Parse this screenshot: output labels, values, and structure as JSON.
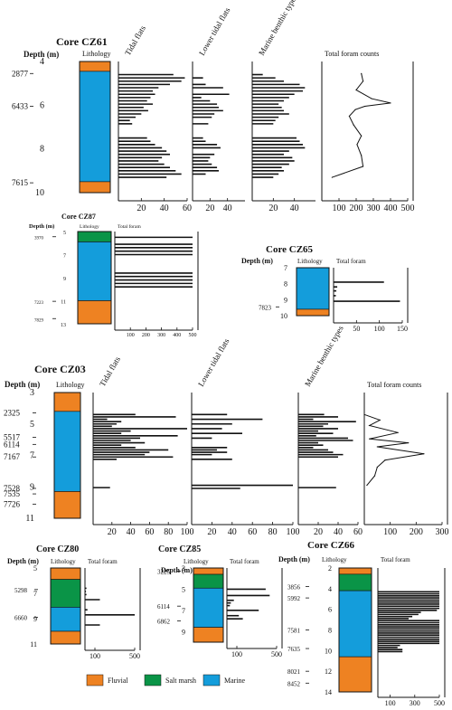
{
  "figure": {
    "legend": [
      {
        "label": "Fluvial",
        "color": "#ee8222"
      },
      {
        "label": "Salt marsh",
        "color": "#0a9447"
      },
      {
        "label": "Marine",
        "color": "#149ddb"
      }
    ]
  },
  "chart_data": [
    {
      "core": "Core CZ61",
      "type": "bar",
      "ylabel": "Depth (m)",
      "depth_range": [
        4,
        10
      ],
      "depth_ticks": [
        4,
        6,
        8,
        10
      ],
      "ages": [
        {
          "label": "2877",
          "depth": 4.55
        },
        {
          "label": "6433",
          "depth": 6.05
        },
        {
          "label": "7615",
          "depth": 9.55
        }
      ],
      "lithology_label": "Lithology",
      "lithology": [
        {
          "type": "Fluvial",
          "color": "#ee8222",
          "top": 4.0,
          "bottom": 4.45
        },
        {
          "type": "Marine",
          "color": "#149ddb",
          "top": 4.45,
          "bottom": 9.5
        },
        {
          "type": "Fluvial",
          "color": "#ee8222",
          "top": 9.5,
          "bottom": 10.0
        }
      ],
      "panels": [
        {
          "label": "Tidal flats",
          "xlim": [
            0,
            60
          ],
          "ticks": [
            20,
            40,
            60
          ],
          "depths": [
            4.6,
            4.75,
            4.9,
            5.05,
            5.2,
            5.35,
            5.5,
            5.65,
            5.8,
            5.95,
            6.1,
            6.25,
            6.4,
            6.55,
            6.7,
            6.85,
            7.5,
            7.65,
            7.8,
            7.95,
            8.1,
            8.25,
            8.4,
            8.55,
            8.7,
            8.85,
            9.0,
            9.15,
            9.3
          ],
          "values": [
            48,
            58,
            55,
            45,
            35,
            30,
            32,
            28,
            25,
            30,
            22,
            26,
            20,
            15,
            10,
            12,
            25,
            28,
            32,
            38,
            42,
            45,
            38,
            35,
            40,
            45,
            50,
            55,
            42
          ]
        },
        {
          "label": "Lower tidal flats",
          "xlim": [
            0,
            60
          ],
          "ticks": [
            20,
            40
          ],
          "depths": [
            4.75,
            5.05,
            5.2,
            5.5,
            5.65,
            5.8,
            5.95,
            6.1,
            6.25,
            6.4,
            6.55,
            6.85,
            7.5,
            7.65,
            7.8,
            7.95,
            8.25,
            8.4,
            8.55,
            8.7,
            8.85,
            9.0,
            9.15
          ],
          "values": [
            12,
            15,
            35,
            42,
            10,
            20,
            28,
            30,
            35,
            25,
            22,
            18,
            12,
            15,
            28,
            32,
            25,
            20,
            18,
            22,
            28,
            30,
            15
          ]
        },
        {
          "label": "Marine benthic types",
          "xlim": [
            0,
            60
          ],
          "ticks": [
            20,
            40
          ],
          "depths": [
            4.6,
            4.75,
            4.9,
            5.05,
            5.2,
            5.35,
            5.5,
            5.65,
            5.8,
            5.95,
            6.1,
            6.25,
            6.4,
            6.55,
            6.7,
            6.85,
            7.5,
            7.65,
            7.8,
            7.95,
            8.1,
            8.25,
            8.4,
            8.55,
            8.7,
            8.85,
            9.0,
            9.15,
            9.3
          ],
          "values": [
            10,
            22,
            30,
            45,
            50,
            48,
            40,
            35,
            30,
            25,
            28,
            30,
            35,
            25,
            22,
            20,
            42,
            45,
            48,
            50,
            35,
            30,
            38,
            40,
            35,
            28,
            30,
            25,
            20
          ]
        },
        {
          "label": "Total foram counts",
          "kind": "curve",
          "xlim": [
            0,
            500
          ],
          "ticks": [
            100,
            200,
            300,
            400,
            500
          ],
          "depths": [
            4.55,
            4.9,
            5.3,
            5.7,
            5.9,
            6.05,
            6.2,
            6.5,
            6.9,
            7.4,
            7.8,
            8.3,
            8.8,
            9.3
          ],
          "values": [
            230,
            240,
            200,
            290,
            400,
            250,
            195,
            160,
            185,
            230,
            205,
            230,
            240,
            60
          ]
        }
      ]
    },
    {
      "core": "Core CZ87",
      "type": "bar",
      "ylabel": "Depth (m)",
      "depth_range": [
        5,
        13
      ],
      "depth_ticks": [
        5,
        7,
        9,
        11,
        13
      ],
      "ages": [
        {
          "label": "3970",
          "depth": 5.45
        },
        {
          "label": "7223",
          "depth": 11.05
        },
        {
          "label": "7829",
          "depth": 12.55
        }
      ],
      "lithology_label": "Lithology",
      "lithology": [
        {
          "type": "Salt marsh",
          "color": "#0a9447",
          "top": 5.0,
          "bottom": 5.9
        },
        {
          "type": "Marine",
          "color": "#149ddb",
          "top": 5.9,
          "bottom": 11.0
        },
        {
          "type": "Fluvial",
          "color": "#ee8222",
          "top": 11.0,
          "bottom": 13.0
        }
      ],
      "panels": [
        {
          "label": "Total foram",
          "xlim": [
            0,
            500
          ],
          "ticks": [
            100,
            200,
            300,
            400,
            500
          ],
          "depths": [
            5.5,
            6.1,
            6.4,
            6.7,
            7.0,
            8.6,
            8.9,
            9.2,
            9.5,
            9.8
          ],
          "values": [
            500,
            500,
            500,
            500,
            500,
            500,
            500,
            500,
            500,
            500
          ]
        }
      ]
    },
    {
      "core": "Core CZ65",
      "type": "bar",
      "ylabel": "Depth (m)",
      "depth_range": [
        7,
        10
      ],
      "depth_ticks": [
        7,
        8,
        9,
        10
      ],
      "ages": [
        {
          "label": "7823",
          "depth": 9.45
        }
      ],
      "lithology_label": "Lithology",
      "lithology": [
        {
          "type": "Marine",
          "color": "#149ddb",
          "top": 7.0,
          "bottom": 9.6
        },
        {
          "type": "Fluvial",
          "color": "#ee8222",
          "top": 9.6,
          "bottom": 10.0
        }
      ],
      "panels": [
        {
          "label": "Total foram",
          "xlim": [
            0,
            150
          ],
          "ticks": [
            50,
            100,
            150
          ],
          "depths": [
            7.9,
            8.2,
            8.45,
            8.75,
            9.1
          ],
          "values": [
            110,
            8,
            6,
            5,
            145
          ]
        }
      ]
    },
    {
      "core": "Core CZ03",
      "type": "bar",
      "ylabel": "Depth (m)",
      "depth_range": [
        3,
        11
      ],
      "depth_ticks": [
        3,
        5,
        7,
        9,
        11
      ],
      "ages": [
        {
          "label": "2325",
          "depth": 4.3
        },
        {
          "label": "5517",
          "depth": 5.85
        },
        {
          "label": "6114",
          "depth": 6.3
        },
        {
          "label": "7167",
          "depth": 7.1
        },
        {
          "label": "7528",
          "depth": 9.1
        },
        {
          "label": "7535",
          "depth": 9.45
        },
        {
          "label": "7726",
          "depth": 10.1
        }
      ],
      "lithology_label": "Lithology",
      "lithology": [
        {
          "type": "Fluvial",
          "color": "#ee8222",
          "top": 3.0,
          "bottom": 4.2
        },
        {
          "type": "Marine",
          "color": "#149ddb",
          "top": 4.2,
          "bottom": 9.3
        },
        {
          "type": "Fluvial",
          "color": "#ee8222",
          "top": 9.3,
          "bottom": 11.0
        }
      ],
      "panels": [
        {
          "label": "Tidal flats",
          "xlim": [
            0,
            100
          ],
          "ticks": [
            20,
            40,
            60,
            80,
            100
          ],
          "depths": [
            4.4,
            4.55,
            4.7,
            4.85,
            5.0,
            5.15,
            5.3,
            5.45,
            5.6,
            5.75,
            5.9,
            6.05,
            6.2,
            6.35,
            6.5,
            6.65,
            6.8,
            6.95,
            7.1,
            7.25,
            9.05
          ],
          "values": [
            45,
            88,
            15,
            30,
            25,
            20,
            100,
            40,
            30,
            90,
            50,
            40,
            55,
            30,
            45,
            80,
            60,
            55,
            85,
            25,
            18
          ]
        },
        {
          "label": "Lower tidal flats",
          "xlim": [
            0,
            100
          ],
          "ticks": [
            20,
            40,
            60,
            80,
            100
          ],
          "depths": [
            4.4,
            4.7,
            5.0,
            5.3,
            5.6,
            5.9,
            6.5,
            6.65,
            6.8,
            6.95,
            7.25,
            8.9,
            9.1
          ],
          "values": [
            35,
            70,
            40,
            30,
            50,
            20,
            35,
            25,
            35,
            20,
            40,
            100,
            48
          ]
        },
        {
          "label": "Marine benthic types",
          "xlim": [
            0,
            60
          ],
          "ticks": [
            20,
            40,
            60
          ],
          "depths": [
            4.4,
            4.55,
            4.7,
            4.85,
            5.0,
            5.15,
            5.3,
            5.45,
            5.6,
            5.75,
            5.9,
            6.05,
            6.2,
            6.35,
            6.5,
            6.65,
            6.8,
            6.95,
            7.1,
            9.05
          ],
          "values": [
            26,
            40,
            15,
            58,
            30,
            25,
            40,
            20,
            35,
            18,
            50,
            55,
            20,
            25,
            15,
            30,
            35,
            45,
            40,
            38
          ]
        },
        {
          "label": "Total foram counts",
          "kind": "curve",
          "xlim": [
            0,
            300
          ],
          "ticks": [
            100,
            200,
            300
          ],
          "depths": [
            4.4,
            4.75,
            5.1,
            5.55,
            5.95,
            6.2,
            6.45,
            6.9,
            7.3,
            7.75,
            8.3,
            8.9
          ],
          "values": [
            0,
            60,
            20,
            130,
            20,
            170,
            50,
            230,
            80,
            50,
            40,
            10
          ]
        }
      ]
    },
    {
      "core": "Core CZ80",
      "type": "bar",
      "ylabel": "Depth (m)",
      "depth_range": [
        5,
        11
      ],
      "depth_ticks": [
        5,
        7,
        9,
        11
      ],
      "ages": [
        {
          "label": "5298",
          "depth": 6.7
        },
        {
          "label": "6660",
          "depth": 8.9
        }
      ],
      "lithology_label": "Lithology",
      "lithology": [
        {
          "type": "Fluvial",
          "color": "#ee8222",
          "top": 5.0,
          "bottom": 5.9
        },
        {
          "type": "Salt marsh",
          "color": "#0a9447",
          "top": 5.9,
          "bottom": 8.1
        },
        {
          "type": "Marine",
          "color": "#149ddb",
          "top": 8.1,
          "bottom": 10.0
        },
        {
          "type": "Fluvial",
          "color": "#ee8222",
          "top": 10.0,
          "bottom": 11.0
        }
      ],
      "panels": [
        {
          "label": "Total foram",
          "xlim": [
            0,
            500
          ],
          "ticks": [
            100,
            500
          ],
          "depths": [
            6.6,
            6.85,
            7.1,
            7.5,
            8.3,
            8.7,
            9.5
          ],
          "values": [
            15,
            10,
            15,
            150,
            25,
            500,
            150
          ]
        }
      ]
    },
    {
      "core": "Core CZ85",
      "type": "bar",
      "ylabel": "Depth (m)",
      "depth_range": [
        3,
        10
      ],
      "depth_ticks": [
        3,
        5,
        7,
        9
      ],
      "ages": [
        {
          "label": "3225",
          "depth": 3.3
        },
        {
          "label": "6114",
          "depth": 6.6
        },
        {
          "label": "6862",
          "depth": 8.0
        }
      ],
      "lithology_label": "Lithology",
      "lithology": [
        {
          "type": "Fluvial",
          "color": "#ee8222",
          "top": 3.0,
          "bottom": 3.6
        },
        {
          "type": "Salt marsh",
          "color": "#0a9447",
          "top": 3.6,
          "bottom": 4.9
        },
        {
          "type": "Marine",
          "color": "#149ddb",
          "top": 4.9,
          "bottom": 8.6
        },
        {
          "type": "Fluvial",
          "color": "#ee8222",
          "top": 8.6,
          "bottom": 10.0
        }
      ],
      "panels": [
        {
          "label": "Total foram",
          "xlim": [
            0,
            500
          ],
          "ticks": [
            100,
            500
          ],
          "depths": [
            5.0,
            5.6,
            6.05,
            6.3,
            6.55,
            7.0,
            7.5,
            7.8
          ],
          "values": [
            390,
            430,
            70,
            40,
            30,
            320,
            120,
            160
          ]
        }
      ]
    },
    {
      "core": "Core CZ66",
      "type": "bar",
      "ylabel": "Depth (m)",
      "depth_range": [
        2,
        14
      ],
      "depth_ticks": [
        2,
        4,
        6,
        8,
        10,
        12,
        14
      ],
      "ages": [
        {
          "label": "3856",
          "depth": 3.8
        },
        {
          "label": "5992",
          "depth": 4.9
        },
        {
          "label": "7581",
          "depth": 8.0
        },
        {
          "label": "7635",
          "depth": 9.8
        },
        {
          "label": "8021",
          "depth": 12.0
        },
        {
          "label": "8452",
          "depth": 13.15
        }
      ],
      "lithology_label": "Lithology",
      "lithology": [
        {
          "type": "Fluvial",
          "color": "#ee8222",
          "top": 2.0,
          "bottom": 2.6
        },
        {
          "type": "Salt marsh",
          "color": "#0a9447",
          "top": 2.6,
          "bottom": 4.2
        },
        {
          "type": "Marine",
          "color": "#149ddb",
          "top": 4.2,
          "bottom": 10.6
        },
        {
          "type": "Fluvial",
          "color": "#ee8222",
          "top": 10.6,
          "bottom": 14.0
        }
      ],
      "panels": [
        {
          "label": "Total foram",
          "xlim": [
            0,
            500
          ],
          "ticks": [
            100,
            300,
            500
          ],
          "depths": [
            4.3,
            4.5,
            4.7,
            4.9,
            5.1,
            5.3,
            5.5,
            5.7,
            5.9,
            6.1,
            6.3,
            6.5,
            6.7,
            6.9,
            7.1,
            7.3,
            7.5,
            7.7,
            7.9,
            8.1,
            8.3,
            8.5,
            8.7,
            8.9,
            9.1,
            9.3,
            9.5,
            9.7,
            9.9,
            10.1
          ],
          "values": [
            500,
            500,
            500,
            500,
            500,
            500,
            500,
            500,
            500,
            480,
            350,
            330,
            280,
            250,
            500,
            500,
            500,
            500,
            500,
            500,
            500,
            500,
            500,
            500,
            500,
            500,
            180,
            160,
            200,
            200
          ]
        }
      ]
    }
  ]
}
